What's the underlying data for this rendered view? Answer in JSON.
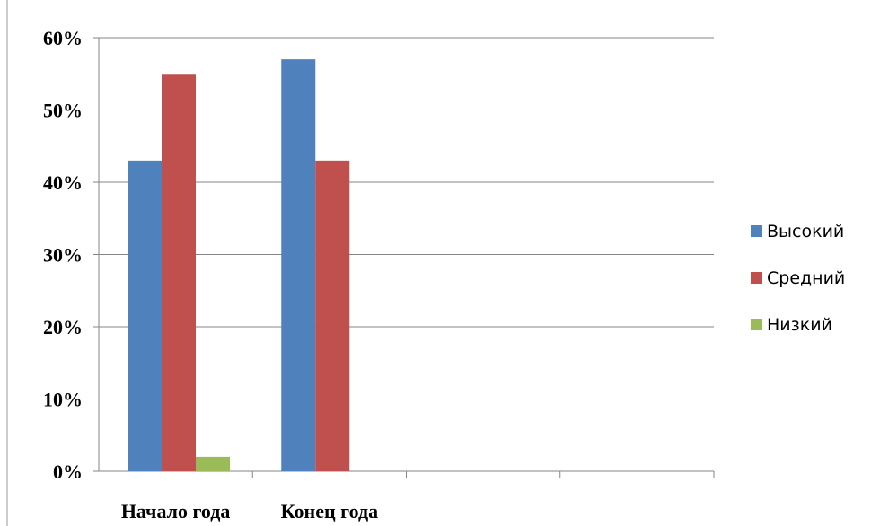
{
  "chart_data": {
    "type": "bar",
    "title": "",
    "xlabel": "",
    "ylabel": "",
    "categories": [
      "Начало года",
      "Конец года",
      "",
      ""
    ],
    "series": [
      {
        "name": "Высокий",
        "color": "#4F81BD",
        "values": [
          43,
          57,
          0,
          0
        ]
      },
      {
        "name": "Средний",
        "color": "#C0504D",
        "values": [
          55,
          43,
          0,
          0
        ]
      },
      {
        "name": "Низкий",
        "color": "#9BBB59",
        "values": [
          2,
          0,
          0,
          0
        ]
      }
    ],
    "ylim": [
      0,
      60
    ],
    "yticks": [
      0,
      10,
      20,
      30,
      40,
      50,
      60
    ],
    "ytick_labels": [
      "0%",
      "10%",
      "20%",
      "30%",
      "40%",
      "50%",
      "60%"
    ],
    "grid": true,
    "legend_position": "right"
  }
}
